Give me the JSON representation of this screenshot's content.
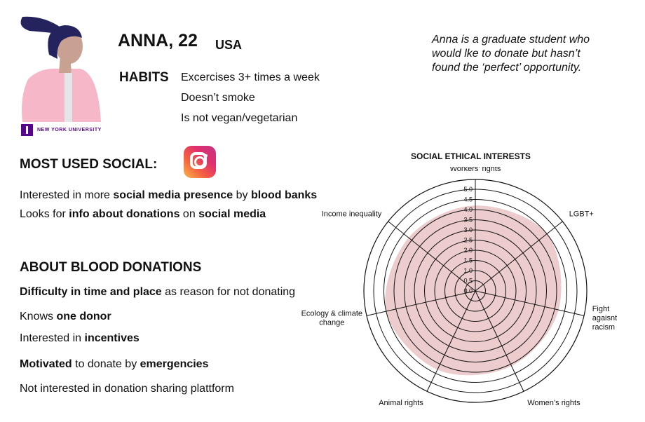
{
  "persona": {
    "name": "ANNA, 22",
    "country": "USA",
    "institution": "NEW YORK UNIVERSITY",
    "quote_lines": [
      "Anna is a graduate student who",
      "would lke to donate but hasn’t",
      "found the ‘perfect’ opportunity."
    ]
  },
  "habits": {
    "title": "HABITS",
    "items": [
      "Excercises 3+ times a week",
      "Doesn’t smoke",
      "Is not vegan/vegetarian"
    ]
  },
  "social": {
    "title": "MOST USED SOCIAL:",
    "icon": "instagram-icon",
    "lines": [
      [
        {
          "t": "Interested in more ",
          "b": false
        },
        {
          "t": "social media presence",
          "b": true
        },
        {
          "t": " by ",
          "b": false
        },
        {
          "t": "blood banks",
          "b": true
        }
      ],
      [
        {
          "t": "Looks for ",
          "b": false
        },
        {
          "t": "info about donations",
          "b": true
        },
        {
          "t": " on ",
          "b": false
        },
        {
          "t": "social media",
          "b": true
        }
      ]
    ]
  },
  "donations": {
    "title": "ABOUT BLOOD DONATIONS",
    "lines": [
      [
        {
          "t": "Difficulty in time and place",
          "b": true
        },
        {
          "t": " as reason for not donating",
          "b": false
        }
      ],
      [
        {
          "t": "Knows ",
          "b": false
        },
        {
          "t": "one donor",
          "b": true
        }
      ],
      [
        {
          "t": "Interested in ",
          "b": false
        },
        {
          "t": "incentives",
          "b": true
        }
      ],
      [
        {
          "t": "Motivated",
          "b": true
        },
        {
          "t": " to donate by ",
          "b": false
        },
        {
          "t": "emergencies",
          "b": true
        }
      ],
      [
        {
          "t": "Not interested in donation sharing plattform",
          "b": false
        }
      ]
    ]
  },
  "colors": {
    "fill": "#ebc6c8",
    "fill_opacity": 0.9,
    "grid": "#111111",
    "nyu_purple": "#57068c"
  },
  "chart_data": {
    "type": "radar",
    "title": "SOCIAL ETHICAL INTERESTS",
    "categories": [
      "Workers’ rights",
      "LGBT+",
      "Fight agaisnt racism",
      "Women’s rights",
      "Animal rights",
      "Ecology & climate change",
      "Income inequality"
    ],
    "category_lines": [
      [
        "Workers’ rights"
      ],
      [
        "LGBT+"
      ],
      [
        "Fight",
        "agaisnt",
        "racism"
      ],
      [
        "Women’s rights"
      ],
      [
        "Animal rights"
      ],
      [
        "Ecology & climate",
        "change"
      ],
      [
        "Income inequality"
      ]
    ],
    "values": [
      4.2,
      4.5,
      4.2,
      4.1,
      4.3,
      4.5,
      4.2
    ],
    "rlim": [
      0,
      5
    ],
    "ticks": [
      "0.0",
      "0.5",
      "1.0",
      "1.5",
      "2.0",
      "2.5",
      "3.0",
      "3.5",
      "4.0",
      "4.5",
      "5.0"
    ],
    "tick_values": [
      0,
      0.5,
      1,
      1.5,
      2,
      2.5,
      3,
      3.5,
      4,
      4.5,
      5
    ],
    "outer_ring": true,
    "smooth": true
  }
}
